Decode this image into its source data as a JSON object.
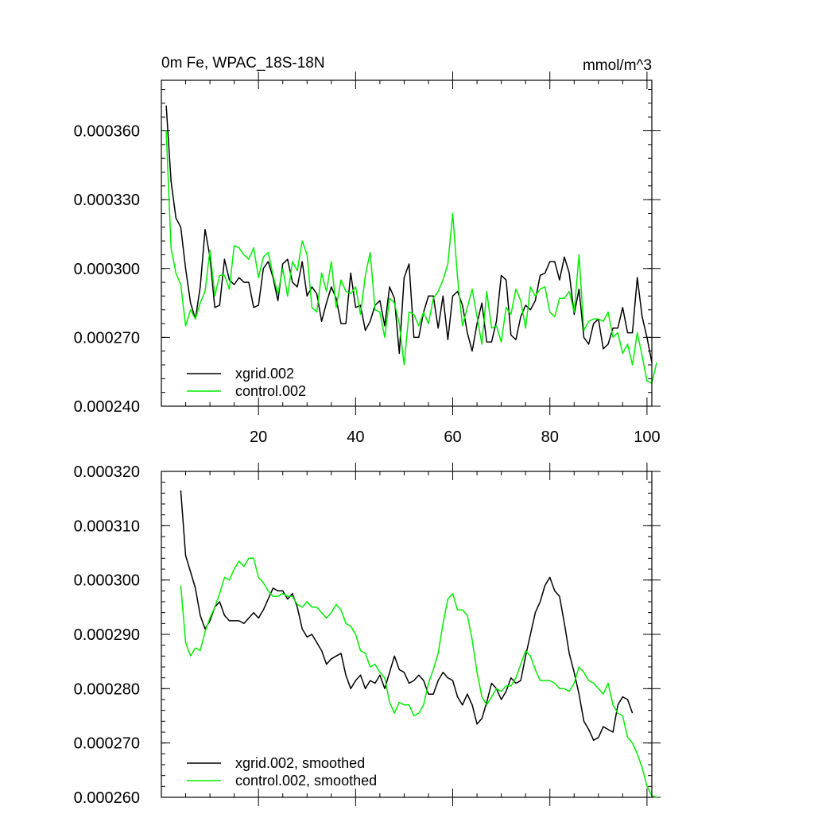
{
  "chart_data": [
    {
      "type": "line",
      "title_left": "0m Fe, WPAC_18S-18N",
      "title_right": "mmol/m^3",
      "xlabel": "",
      "ylabel": "",
      "xlim": [
        0,
        101
      ],
      "ylim": [
        0.00024,
        0.000382
      ],
      "x_ticks": [
        20,
        40,
        60,
        80,
        100
      ],
      "x_tick_labels": [
        "20",
        "40",
        "60",
        "80",
        "100"
      ],
      "y_ticks": [
        0.00024,
        0.00027,
        0.0003,
        0.00033,
        0.00036
      ],
      "y_tick_labels": [
        "0.000240",
        "0.000270",
        "0.000300",
        "0.000330",
        "0.000360"
      ],
      "legend_position": "bottom-left",
      "series": [
        {
          "name": "xgrid.002",
          "color": "#000000",
          "x_start": 1,
          "values": [
            0.000371,
            0.000338,
            0.000322,
            0.000318,
            0.0003,
            0.000285,
            0.000278,
            0.000292,
            0.000317,
            0.000305,
            0.000283,
            0.000284,
            0.000304,
            0.000295,
            0.000293,
            0.000296,
            0.000294,
            0.000294,
            0.000283,
            0.000284,
            0.0003,
            0.000303,
            0.000296,
            0.000286,
            0.000302,
            0.000304,
            0.000294,
            0.000292,
            0.000303,
            0.000288,
            0.000292,
            0.000289,
            0.000277,
            0.000285,
            0.000292,
            0.000287,
            0.000276,
            0.000276,
            0.000298,
            0.000283,
            0.000284,
            0.000273,
            0.000277,
            0.000284,
            0.000286,
            0.000275,
            0.000292,
            0.000287,
            0.000263,
            0.000296,
            0.000302,
            0.00027,
            0.00027,
            0.000281,
            0.000288,
            0.000288,
            0.000274,
            0.000288,
            0.000269,
            0.000288,
            0.00029,
            0.000284,
            0.000272,
            0.000264,
            0.000276,
            0.000285,
            0.000268,
            0.000268,
            0.000277,
            0.000297,
            0.000295,
            0.000271,
            0.000269,
            0.000279,
            0.000284,
            0.000282,
            0.000286,
            0.000297,
            0.000298,
            0.000303,
            0.000303,
            0.000295,
            0.000305,
            0.000298,
            0.00028,
            0.000291,
            0.00027,
            0.000267,
            0.000276,
            0.000278,
            0.000265,
            0.000267,
            0.000274,
            0.000274,
            0.000283,
            0.000272,
            0.000272,
            0.000296,
            0.000279,
            0.00027,
            0.000259
          ]
        },
        {
          "name": "control.002",
          "color": "#00ee00",
          "x_start": 1,
          "values": [
            0.00036,
            0.000309,
            0.000298,
            0.000293,
            0.000275,
            0.000282,
            0.000278,
            0.000285,
            0.00029,
            0.000308,
            0.000288,
            0.000297,
            0.000297,
            0.000291,
            0.00031,
            0.000309,
            0.000306,
            0.000304,
            0.000309,
            0.000296,
            0.000305,
            0.000307,
            0.000297,
            0.000289,
            0.0003,
            0.000288,
            0.000303,
            0.000299,
            0.000312,
            0.000306,
            0.000283,
            0.000281,
            0.000298,
            0.00029,
            0.000303,
            0.000283,
            0.000295,
            0.00029,
            0.000289,
            0.000292,
            0.00028,
            0.000297,
            0.000307,
            0.000282,
            0.000281,
            0.00027,
            0.000287,
            0.000285,
            0.000276,
            0.000258,
            0.000281,
            0.00028,
            0.000275,
            0.000281,
            0.000276,
            0.000287,
            0.00029,
            0.000295,
            0.000302,
            0.000324,
            0.000296,
            0.000275,
            0.000283,
            0.000291,
            0.000279,
            0.000267,
            0.00029,
            0.000274,
            0.000275,
            0.000268,
            0.000283,
            0.00028,
            0.000291,
            0.000286,
            0.000274,
            0.000292,
            0.000288,
            0.000291,
            0.000292,
            0.000281,
            0.000279,
            0.000287,
            0.000287,
            0.00029,
            0.000281,
            0.000306,
            0.000273,
            0.000277,
            0.000278,
            0.000278,
            0.000277,
            0.000281,
            0.00027,
            0.000272,
            0.000263,
            0.000267,
            0.000258,
            0.000272,
            0.000262,
            0.000251,
            0.00025,
            0.000259
          ]
        }
      ]
    },
    {
      "type": "line",
      "xlabel": "",
      "ylabel": "",
      "xlim": [
        0,
        101
      ],
      "ylim": [
        0.00026,
        0.00032
      ],
      "x_ticks": [
        20,
        40,
        60,
        80,
        100
      ],
      "x_tick_labels": [],
      "y_ticks": [
        0.00026,
        0.00027,
        0.00028,
        0.00029,
        0.0003,
        0.00031,
        0.00032
      ],
      "y_tick_labels": [
        "0.000260",
        "0.000270",
        "0.000280",
        "0.000290",
        "0.000300",
        "0.000310",
        "0.000320"
      ],
      "legend_position": "bottom-left",
      "series": [
        {
          "name": "xgrid.002, smoothed",
          "color": "#000000",
          "x_start": 4,
          "values": [
            0.0003165,
            0.0003045,
            0.0003015,
            0.0002985,
            0.0002935,
            0.000291,
            0.0002925,
            0.000295,
            0.000296,
            0.0002935,
            0.0002925,
            0.0002925,
            0.0002925,
            0.000292,
            0.000293,
            0.000294,
            0.000293,
            0.0002945,
            0.0002965,
            0.0002985,
            0.000298,
            0.000298,
            0.0002965,
            0.0002975,
            0.000295,
            0.000291,
            0.0002895,
            0.00029,
            0.0002885,
            0.000287,
            0.0002845,
            0.0002855,
            0.000286,
            0.0002865,
            0.0002825,
            0.00028,
            0.0002815,
            0.0002825,
            0.00028,
            0.0002815,
            0.000281,
            0.0002825,
            0.00028,
            0.000283,
            0.000286,
            0.0002835,
            0.000283,
            0.000281,
            0.0002815,
            0.0002825,
            0.0002815,
            0.000279,
            0.000279,
            0.0002815,
            0.000283,
            0.000282,
            0.0002815,
            0.0002785,
            0.000277,
            0.000279,
            0.000277,
            0.0002735,
            0.0002745,
            0.0002775,
            0.000281,
            0.00028,
            0.000278,
            0.0002795,
            0.000282,
            0.000281,
            0.0002815,
            0.000286,
            0.00029,
            0.000294,
            0.000296,
            0.000299,
            0.0003005,
            0.000298,
            0.000297,
            0.000292,
            0.0002865,
            0.000283,
            0.000279,
            0.000274,
            0.0002725,
            0.0002705,
            0.000271,
            0.000273,
            0.0002725,
            0.000272,
            0.000277,
            0.0002785,
            0.000278,
            0.0002755
          ]
        },
        {
          "name": "control.002, smoothed",
          "color": "#00ee00",
          "x_start": 4,
          "values": [
            0.000299,
            0.0002885,
            0.000286,
            0.0002875,
            0.000287,
            0.0002905,
            0.000293,
            0.000295,
            0.0002975,
            0.0003005,
            0.0003,
            0.000302,
            0.0003035,
            0.0003025,
            0.000304,
            0.000304,
            0.0003005,
            0.0002995,
            0.000298,
            0.000297,
            0.000297,
            0.0002975,
            0.000297,
            0.000297,
            0.0002955,
            0.000295,
            0.000296,
            0.000295,
            0.000295,
            0.000294,
            0.000293,
            0.000294,
            0.0002955,
            0.0002945,
            0.000292,
            0.0002915,
            0.00029,
            0.000287,
            0.0002865,
            0.000284,
            0.0002845,
            0.000283,
            0.000282,
            0.0002775,
            0.0002755,
            0.0002775,
            0.000277,
            0.000277,
            0.000275,
            0.0002755,
            0.000277,
            0.000281,
            0.0002835,
            0.0002865,
            0.000292,
            0.0002965,
            0.0002975,
            0.0002945,
            0.0002945,
            0.0002935,
            0.000289,
            0.000283,
            0.0002785,
            0.000277,
            0.0002785,
            0.00028,
            0.0002795,
            0.0002805,
            0.0002805,
            0.000282,
            0.0002845,
            0.000287,
            0.000286,
            0.0002835,
            0.0002815,
            0.0002815,
            0.0002815,
            0.000281,
            0.00028,
            0.00028,
            0.0002795,
            0.000281,
            0.000284,
            0.000283,
            0.0002815,
            0.000281,
            0.00028,
            0.000279,
            0.000281,
            0.000277,
            0.0002755,
            0.000275,
            0.000271,
            0.00027,
            0.000268,
            0.0002655,
            0.000262,
            0.0002603,
            0.0002596
          ]
        }
      ]
    }
  ]
}
